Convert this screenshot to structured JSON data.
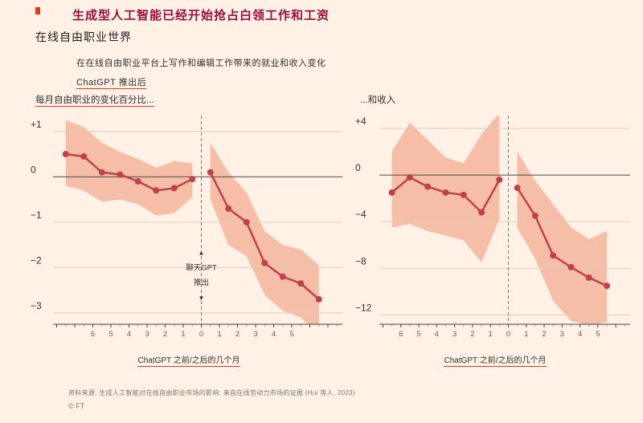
{
  "page": {
    "title": "生成型人工智能已经开始抢占白领工作和工资",
    "subtitle": "在线自由职业世界",
    "description": "在在线自由职业平台上写作和编辑工作带来的就业和收入变化",
    "description2": "ChatGPT 推出后",
    "source": "资料来源: 生成人工智能对在线自由职业市场的影响: 来自在线劳动力市场的证据 (Hui 等人, 2023)",
    "credit": "© FT"
  },
  "colors": {
    "background": "#FFF1E5",
    "title": "#990F3D",
    "line": "#C0414D",
    "band": "#F6BEA6",
    "grid": "#D9CCBE",
    "zero": "#4A4542",
    "axis": "#8A837C",
    "dash": "#7D7671",
    "text": "#33302E",
    "ticktext": "#66605C",
    "accent_red": "#E03A26"
  },
  "chart_data": [
    {
      "type": "line",
      "title": "每月自由职业的变化百分比...",
      "xlabel": "ChatGPT 之前/之后的几个月",
      "xlim": [
        -8.2,
        7.8
      ],
      "ylim": [
        -3.25,
        1.35
      ],
      "yticks": [
        {
          "v": 1,
          "label": "+1"
        },
        {
          "v": 0,
          "label": "0"
        },
        {
          "v": -1,
          "label": "−1"
        },
        {
          "v": -2,
          "label": "−2"
        },
        {
          "v": -3,
          "label": "−3"
        }
      ],
      "xticks": [
        {
          "m": -6,
          "label": "6"
        },
        {
          "m": -5,
          "label": "5"
        },
        {
          "m": -4,
          "label": "4"
        },
        {
          "m": -3,
          "label": "3"
        },
        {
          "m": -2,
          "label": "2"
        },
        {
          "m": -1,
          "label": "1"
        },
        {
          "m": 0,
          "label": "0"
        },
        {
          "m": 1,
          "label": "1"
        },
        {
          "m": 2,
          "label": "2"
        },
        {
          "m": 3,
          "label": "3"
        },
        {
          "m": 4,
          "label": "4"
        },
        {
          "m": 5,
          "label": "5"
        }
      ],
      "pre": {
        "x": [
          -7.5,
          -6.5,
          -5.5,
          -4.5,
          -3.5,
          -2.5,
          -1.5,
          -0.5
        ],
        "y": [
          0.5,
          0.45,
          0.1,
          0.05,
          -0.1,
          -0.3,
          -0.25,
          -0.05
        ],
        "upper": [
          1.25,
          1.1,
          0.75,
          0.55,
          0.4,
          0.2,
          0.35,
          0.3
        ],
        "lower": [
          -0.2,
          -0.3,
          -0.55,
          -0.5,
          -0.6,
          -0.85,
          -0.8,
          -0.45
        ]
      },
      "post": {
        "x": [
          0.5,
          1.5,
          2.5,
          3.5,
          4.5,
          5.5,
          6.5
        ],
        "y": [
          0.1,
          -0.7,
          -1.0,
          -1.9,
          -2.2,
          -2.35,
          -2.7
        ],
        "upper": [
          0.75,
          0.1,
          -0.35,
          -1.2,
          -1.5,
          -1.6,
          -1.95
        ],
        "lower": [
          -0.5,
          -1.5,
          -1.75,
          -2.6,
          -2.95,
          -3.1,
          -3.5
        ]
      },
      "annotation": {
        "up_arrow": "▲",
        "lines": [
          "聊天GPT",
          "推出"
        ],
        "down_arrow": "▼",
        "y_positions": [
          -1.72,
          -2.06,
          -2.38,
          -2.72
        ]
      }
    },
    {
      "type": "line",
      "title": "...和收入",
      "xlabel": "ChatGPT 之前/之后的几个月",
      "xlim": [
        -7.2,
        6.8
      ],
      "ylim": [
        -12.8,
        5.1
      ],
      "yticks": [
        {
          "v": 4,
          "label": "+4"
        },
        {
          "v": 0,
          "label": "0"
        },
        {
          "v": -4,
          "label": "−4"
        },
        {
          "v": -8,
          "label": "−8"
        },
        {
          "v": -12,
          "label": "−12"
        }
      ],
      "xticks": [
        {
          "m": -6,
          "label": "6"
        },
        {
          "m": -5,
          "label": "5"
        },
        {
          "m": -4,
          "label": "4"
        },
        {
          "m": -3,
          "label": "3"
        },
        {
          "m": -2,
          "label": "2"
        },
        {
          "m": -1,
          "label": "1"
        },
        {
          "m": 0,
          "label": "0"
        },
        {
          "m": 1,
          "label": "1"
        },
        {
          "m": 2,
          "label": "2"
        },
        {
          "m": 3,
          "label": "3"
        },
        {
          "m": 4,
          "label": "4"
        },
        {
          "m": 5,
          "label": "5"
        }
      ],
      "pre": {
        "x": [
          -6.5,
          -5.5,
          -4.5,
          -3.5,
          -2.5,
          -1.5,
          -0.5
        ],
        "y": [
          -1.5,
          -0.2,
          -1.0,
          -1.5,
          -1.7,
          -3.2,
          -0.4
        ],
        "upper": [
          2.0,
          4.5,
          3.0,
          1.5,
          1.0,
          3.5,
          5.3
        ],
        "lower": [
          -4.5,
          -4.2,
          -4.8,
          -5.2,
          -5.6,
          -7.5,
          -3.8
        ]
      },
      "post": {
        "x": [
          0.5,
          1.5,
          2.5,
          3.5,
          4.5,
          5.5
        ],
        "y": [
          -1.1,
          -3.5,
          -6.9,
          -7.9,
          -8.8,
          -9.5
        ],
        "upper": [
          2.0,
          -0.5,
          -2.5,
          -4.5,
          -5.5,
          -4.8
        ],
        "lower": [
          -4.5,
          -7.2,
          -10.8,
          -12.5,
          -12.9,
          -12.6
        ]
      },
      "annotation": null
    }
  ]
}
